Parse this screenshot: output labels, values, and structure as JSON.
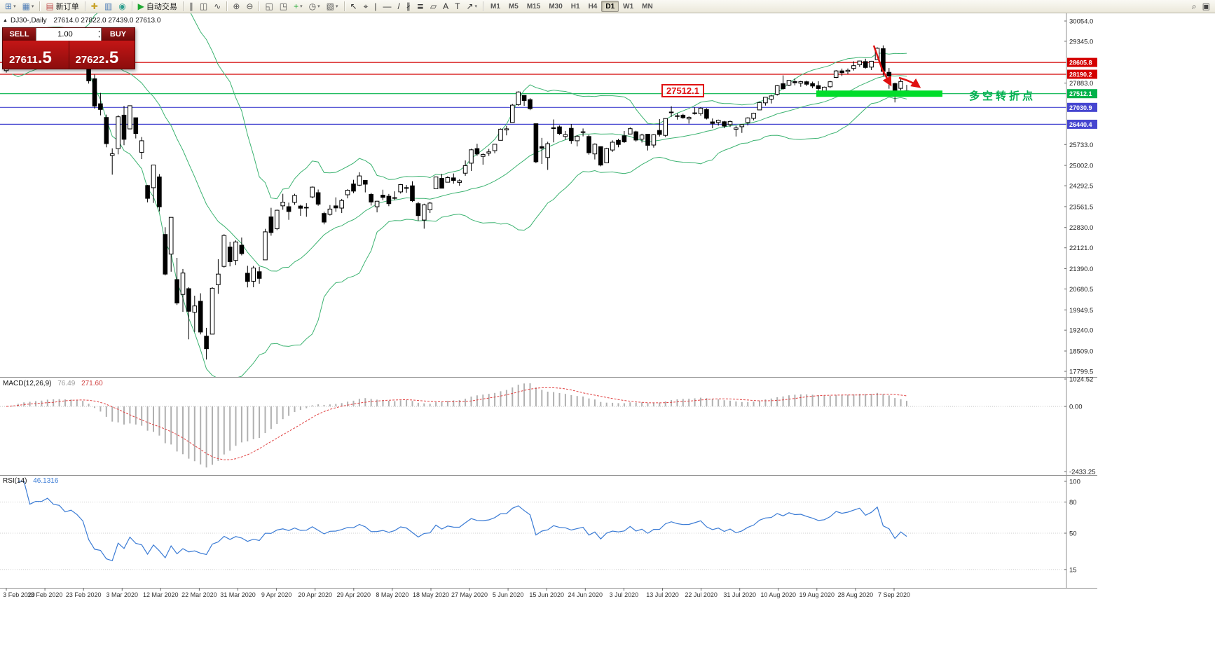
{
  "toolbar": {
    "groups": [
      {
        "items": [
          {
            "name": "new-chart-button",
            "glyph": "⊞",
            "color": "#4a7ab5",
            "dropdown": true
          },
          {
            "name": "chart-profiles-button",
            "glyph": "▦",
            "color": "#4a7ab5",
            "dropdown": true
          }
        ]
      },
      {
        "items": [
          {
            "name": "new-order-button",
            "glyph": "▤",
            "color": "#c05050",
            "label": "新订单"
          }
        ]
      },
      {
        "items": [
          {
            "name": "expert-advisors-button",
            "glyph": "✚",
            "color": "#c8a228"
          },
          {
            "name": "chart-list-button",
            "glyph": "▥",
            "color": "#4a7ab5"
          },
          {
            "name": "data-window-button",
            "glyph": "◉",
            "color": "#2f9e8f"
          }
        ]
      },
      {
        "items": [
          {
            "name": "auto-trading-button",
            "glyph": "▶",
            "color": "#1fa832",
            "label": "自动交易"
          }
        ]
      },
      {
        "items": [
          {
            "name": "bar-chart-button",
            "glyph": "∥",
            "color": "#555555"
          },
          {
            "name": "candlestick-chart-button",
            "glyph": "◫",
            "color": "#555555"
          },
          {
            "name": "line-chart-button",
            "glyph": "∿",
            "color": "#555555"
          }
        ]
      },
      {
        "items": [
          {
            "name": "zoom-in-button",
            "glyph": "⊕",
            "color": "#555555"
          },
          {
            "name": "zoom-out-button",
            "glyph": "⊖",
            "color": "#555555"
          }
        ]
      },
      {
        "items": [
          {
            "name": "tile-windows-button",
            "glyph": "◱",
            "color": "#555555"
          },
          {
            "name": "cascade-windows-button",
            "glyph": "◳",
            "color": "#555555"
          },
          {
            "name": "indicators-button",
            "glyph": "+",
            "color": "#1fa832",
            "dropdown": true
          },
          {
            "name": "periods-button",
            "glyph": "◷",
            "color": "#555555",
            "dropdown": true
          },
          {
            "name": "templates-button",
            "glyph": "▧",
            "color": "#555555",
            "dropdown": true
          }
        ]
      },
      {
        "items": [
          {
            "name": "cursor-tool",
            "glyph": "↖",
            "color": "#333333"
          },
          {
            "name": "crosshair-tool",
            "glyph": "⌖",
            "color": "#333333"
          },
          {
            "name": "vertical-line-tool",
            "glyph": "|",
            "color": "#333333"
          },
          {
            "name": "horizontal-line-tool",
            "glyph": "—",
            "color": "#333333"
          },
          {
            "name": "trendline-tool",
            "glyph": "/",
            "color": "#333333"
          },
          {
            "name": "channel-tool",
            "glyph": "∦",
            "color": "#333333"
          },
          {
            "name": "fibonacci-tool",
            "glyph": "≣",
            "color": "#333333"
          },
          {
            "name": "shapes-tool",
            "glyph": "▱",
            "color": "#333333"
          },
          {
            "name": "text-tool",
            "glyph": "A",
            "color": "#333333"
          },
          {
            "name": "label-tool",
            "glyph": "T",
            "color": "#333333"
          },
          {
            "name": "arrows-tool",
            "glyph": "↗",
            "color": "#333333",
            "dropdown": true
          }
        ]
      }
    ],
    "timeframes": [
      "M1",
      "M5",
      "M15",
      "M30",
      "H1",
      "H4",
      "D1",
      "W1",
      "MN"
    ],
    "active_timeframe": "D1",
    "right_items": [
      {
        "name": "search-button",
        "glyph": "⌕",
        "color": "#444444"
      },
      {
        "name": "community-button",
        "glyph": "▣",
        "color": "#444444"
      }
    ]
  },
  "chart": {
    "header_symbol": "DJ30-,Daily",
    "header_ohlc": "27614.0 27822.0 27439.0 27613.0"
  },
  "trade_panel": {
    "sell_label": "SELL",
    "buy_label": "BUY",
    "volume": "1.00",
    "sell_price_main": "27611",
    "sell_price_frac": ".5",
    "buy_price_main": "27622",
    "buy_price_frac": ".5"
  },
  "chart_data": {
    "type": "candlestick",
    "symbol": "DJ30-",
    "timeframe": "Daily",
    "current_bar": {
      "open": 27614.0,
      "high": 27822.0,
      "low": 27439.0,
      "close": 27613.0
    },
    "x_labels": [
      "3 Feb 2020",
      "13 Feb 2020",
      "23 Feb 2020",
      "3 Mar 2020",
      "12 Mar 2020",
      "22 Mar 2020",
      "31 Mar 2020",
      "9 Apr 2020",
      "20 Apr 2020",
      "29 Apr 2020",
      "8 May 2020",
      "18 May 2020",
      "27 May 2020",
      "5 Jun 2020",
      "15 Jun 2020",
      "24 Jun 2020",
      "3 Jul 2020",
      "13 Jul 2020",
      "22 Jul 2020",
      "31 Jul 2020",
      "10 Aug 2020",
      "19 Aug 2020",
      "28 Aug 2020",
      "7 Sep 2020"
    ],
    "y_axis_labels": [
      30054.0,
      29345.0,
      27883.0,
      25733.0,
      25002.0,
      24292.5,
      23561.5,
      22830.0,
      22121.0,
      21390.0,
      20680.5,
      19949.5,
      19240.0,
      18509.0,
      17799.5
    ],
    "levels": [
      {
        "price": 28605.8,
        "color": "#d40000"
      },
      {
        "price": 28190.2,
        "color": "#d40000"
      },
      {
        "price": 27512.1,
        "color": "#00b24a"
      },
      {
        "price": 27030.9,
        "color": "#4545d0"
      },
      {
        "price": 26440.4,
        "color": "#4545d0"
      }
    ],
    "candles": [
      [
        28320,
        28630,
        28250,
        28400
      ],
      [
        28455,
        28830,
        28455,
        28808
      ],
      [
        28970,
        29308,
        28950,
        29291
      ],
      [
        29300,
        29409,
        29245,
        29380
      ],
      [
        29320,
        29330,
        29056,
        29103
      ],
      [
        29070,
        29285,
        29008,
        29277
      ],
      [
        29330,
        29415,
        29210,
        29276
      ],
      [
        29340,
        29568,
        29340,
        29551
      ],
      [
        29450,
        29535,
        29345,
        29423
      ],
      [
        29420,
        29445,
        29305,
        29398
      ],
      [
        29290,
        29330,
        29135,
        29232
      ],
      [
        29280,
        29409,
        29250,
        29348
      ],
      [
        29330,
        29368,
        28960,
        29220
      ],
      [
        29150,
        29180,
        28855,
        28992
      ],
      [
        28400,
        28420,
        27865,
        27961
      ],
      [
        28035,
        28180,
        26990,
        27081
      ],
      [
        27160,
        27540,
        26755,
        26958
      ],
      [
        26680,
        26780,
        25635,
        25767
      ],
      [
        25350,
        25600,
        24680,
        25409
      ],
      [
        25590,
        26760,
        25390,
        26703
      ],
      [
        26760,
        27085,
        25710,
        25917
      ],
      [
        26280,
        27100,
        26280,
        27091
      ],
      [
        26670,
        26675,
        25945,
        26121
      ],
      [
        25460,
        25995,
        25225,
        25865
      ],
      [
        24300,
        24320,
        23710,
        23851
      ],
      [
        24225,
        25025,
        23690,
        25018
      ],
      [
        24600,
        24700,
        23395,
        23553
      ],
      [
        22585,
        22840,
        21155,
        21200
      ],
      [
        21900,
        23190,
        21285,
        23186
      ],
      [
        21010,
        21770,
        20120,
        20188
      ],
      [
        20490,
        21380,
        19880,
        21237
      ],
      [
        20690,
        20740,
        18920,
        19899
      ],
      [
        19870,
        20445,
        19180,
        20087
      ],
      [
        20250,
        20530,
        19090,
        19174
      ],
      [
        19030,
        19320,
        18214,
        18592
      ],
      [
        19100,
        20740,
        19100,
        20705
      ],
      [
        20830,
        21720,
        20510,
        21200
      ],
      [
        21470,
        22595,
        21430,
        22552
      ],
      [
        22150,
        22330,
        21470,
        21637
      ],
      [
        21680,
        22380,
        21520,
        22327
      ],
      [
        22210,
        22480,
        21855,
        21917
      ],
      [
        21230,
        21490,
        20735,
        20944
      ],
      [
        20950,
        21485,
        20740,
        21413
      ],
      [
        21285,
        21455,
        20865,
        21053
      ],
      [
        21700,
        22785,
        21695,
        22680
      ],
      [
        23200,
        23520,
        22545,
        22654
      ],
      [
        22790,
        23455,
        22740,
        23434
      ],
      [
        23590,
        24010,
        23450,
        23719
      ],
      [
        23560,
        23700,
        23100,
        23391
      ],
      [
        23710,
        24010,
        23625,
        23950
      ],
      [
        23580,
        23625,
        23240,
        23504
      ],
      [
        23530,
        23680,
        23205,
        23537
      ],
      [
        23900,
        24265,
        23855,
        24242
      ],
      [
        24050,
        24160,
        23590,
        23650
      ],
      [
        23320,
        23385,
        22940,
        23019
      ],
      [
        23290,
        23615,
        23250,
        23476
      ],
      [
        23585,
        23885,
        23380,
        23515
      ],
      [
        23510,
        23830,
        23335,
        23775
      ],
      [
        23975,
        24175,
        23850,
        24134
      ],
      [
        24355,
        24500,
        24035,
        24102
      ],
      [
        24310,
        24765,
        24280,
        24634
      ],
      [
        24480,
        24490,
        24060,
        24346
      ],
      [
        23990,
        24040,
        23600,
        23724
      ],
      [
        23555,
        23760,
        23360,
        23749
      ],
      [
        23960,
        24155,
        23785,
        23883
      ],
      [
        23925,
        24005,
        23575,
        23665
      ],
      [
        23860,
        24095,
        23790,
        23876
      ],
      [
        24075,
        24350,
        24020,
        24331
      ],
      [
        24225,
        24315,
        24045,
        24222
      ],
      [
        24290,
        24450,
        23725,
        23765
      ],
      [
        23665,
        23725,
        23065,
        23248
      ],
      [
        23090,
        23665,
        22790,
        23625
      ],
      [
        23450,
        23730,
        23335,
        23685
      ],
      [
        24185,
        24600,
        24185,
        24597
      ],
      [
        24550,
        24710,
        24195,
        24207
      ],
      [
        24415,
        24625,
        24410,
        24576
      ],
      [
        24565,
        24720,
        24365,
        24474
      ],
      [
        24405,
        24520,
        24295,
        24465
      ],
      [
        24730,
        25180,
        24640,
        24995
      ],
      [
        25080,
        25585,
        24810,
        25548
      ],
      [
        25590,
        25760,
        25335,
        25401
      ],
      [
        25320,
        25425,
        25030,
        25383
      ],
      [
        25430,
        25580,
        25335,
        25475
      ],
      [
        25520,
        25745,
        25430,
        25743
      ],
      [
        25880,
        26295,
        25880,
        26270
      ],
      [
        26245,
        26385,
        26055,
        26282
      ],
      [
        26505,
        27155,
        26505,
        27111
      ],
      [
        27125,
        27595,
        27090,
        27572
      ],
      [
        27450,
        27460,
        27085,
        27272
      ],
      [
        27305,
        27355,
        26935,
        26990
      ],
      [
        26460,
        26470,
        25080,
        25128
      ],
      [
        25660,
        25965,
        25055,
        25605
      ],
      [
        25280,
        25830,
        24845,
        25763
      ],
      [
        26320,
        26610,
        25810,
        26290
      ],
      [
        26350,
        26400,
        26070,
        26120
      ],
      [
        26015,
        26205,
        25905,
        26080
      ],
      [
        26300,
        26450,
        25760,
        25871
      ],
      [
        25865,
        26060,
        25670,
        26025
      ],
      [
        26180,
        26295,
        26020,
        26156
      ],
      [
        26015,
        26070,
        25380,
        25446
      ],
      [
        25405,
        25775,
        25210,
        25746
      ],
      [
        25660,
        25670,
        24970,
        25016
      ],
      [
        25095,
        25620,
        25090,
        25596
      ],
      [
        25540,
        25880,
        25475,
        25813
      ],
      [
        25880,
        25935,
        25635,
        25735
      ],
      [
        26040,
        26205,
        25790,
        25827
      ],
      [
        26100,
        26335,
        26095,
        26287
      ],
      [
        26180,
        26215,
        25835,
        25890
      ],
      [
        25925,
        26110,
        25805,
        26067
      ],
      [
        26095,
        26100,
        25525,
        25706
      ],
      [
        25715,
        26095,
        25625,
        26075
      ],
      [
        26225,
        26625,
        26015,
        26086
      ],
      [
        26055,
        26650,
        25995,
        26643
      ],
      [
        26845,
        27070,
        26700,
        26870
      ],
      [
        26740,
        26830,
        26605,
        26735
      ],
      [
        26760,
        26810,
        26635,
        26672
      ],
      [
        26630,
        26720,
        26465,
        26681
      ],
      [
        26835,
        27035,
        26780,
        26840
      ],
      [
        26815,
        27040,
        26745,
        27006
      ],
      [
        26960,
        27005,
        26610,
        26652
      ],
      [
        26525,
        26645,
        26305,
        26470
      ],
      [
        26505,
        26605,
        26395,
        26584
      ],
      [
        26530,
        26560,
        26305,
        26379
      ],
      [
        26430,
        26570,
        26345,
        26539
      ],
      [
        26270,
        26390,
        26015,
        26313
      ],
      [
        26355,
        26445,
        26140,
        26428
      ],
      [
        26505,
        26690,
        26400,
        26664
      ],
      [
        26650,
        26845,
        26580,
        26828
      ],
      [
        26945,
        27225,
        26945,
        27202
      ],
      [
        27190,
        27390,
        27095,
        27387
      ],
      [
        27320,
        27470,
        27170,
        27433
      ],
      [
        27490,
        27815,
        27445,
        27791
      ],
      [
        27860,
        28155,
        27655,
        27686
      ],
      [
        27810,
        27995,
        27780,
        27977
      ],
      [
        27935,
        28045,
        27805,
        27897
      ],
      [
        27880,
        27960,
        27755,
        27931
      ],
      [
        27930,
        27965,
        27780,
        27845
      ],
      [
        27865,
        27935,
        27700,
        27778
      ],
      [
        27795,
        27945,
        27610,
        27693
      ],
      [
        27595,
        27760,
        27525,
        27740
      ],
      [
        27755,
        27960,
        27710,
        27930
      ],
      [
        28080,
        28335,
        28060,
        28308
      ],
      [
        28310,
        28390,
        28130,
        28248
      ],
      [
        28290,
        28395,
        28200,
        28332
      ],
      [
        28395,
        28645,
        28320,
        28492
      ],
      [
        28525,
        28665,
        28450,
        28654
      ],
      [
        28635,
        28735,
        28390,
        28430
      ],
      [
        28440,
        28660,
        28340,
        28646
      ],
      [
        28705,
        29135,
        28690,
        29101
      ],
      [
        29085,
        29200,
        28125,
        28293
      ],
      [
        28260,
        28410,
        27685,
        28133
      ],
      [
        27865,
        27900,
        27205,
        27501
      ],
      [
        27700,
        28025,
        27625,
        27940
      ],
      [
        27614,
        27822,
        27439,
        27613
      ]
    ],
    "indicators": {
      "bollinger": {
        "period": 20,
        "deviation": 2,
        "color": "#3CB371"
      },
      "macd": {
        "label": "MACD(12,26,9)",
        "value_main": "76.49",
        "value_signal": "271.60",
        "scale": {
          "max": 1024.52,
          "min": -2433.25
        },
        "scale_labels": [
          1024.52,
          0,
          -2433.25
        ],
        "histogram_color": "#b0b0b0",
        "signal_color": "#e04040"
      },
      "rsi": {
        "label": "RSI(14)",
        "value": "46.1316",
        "scale_labels": [
          100,
          80,
          50,
          15
        ],
        "levels": [
          80,
          50,
          15
        ],
        "color": "#3a7bd5"
      }
    },
    "annotations": {
      "price_callout": "27512.1",
      "pivot_text": "多空转折点",
      "highlight_color": "#00dd2a",
      "arrow_color": "#e01010",
      "callout_color": "#e01010",
      "pivot_color": "#00b050"
    }
  }
}
